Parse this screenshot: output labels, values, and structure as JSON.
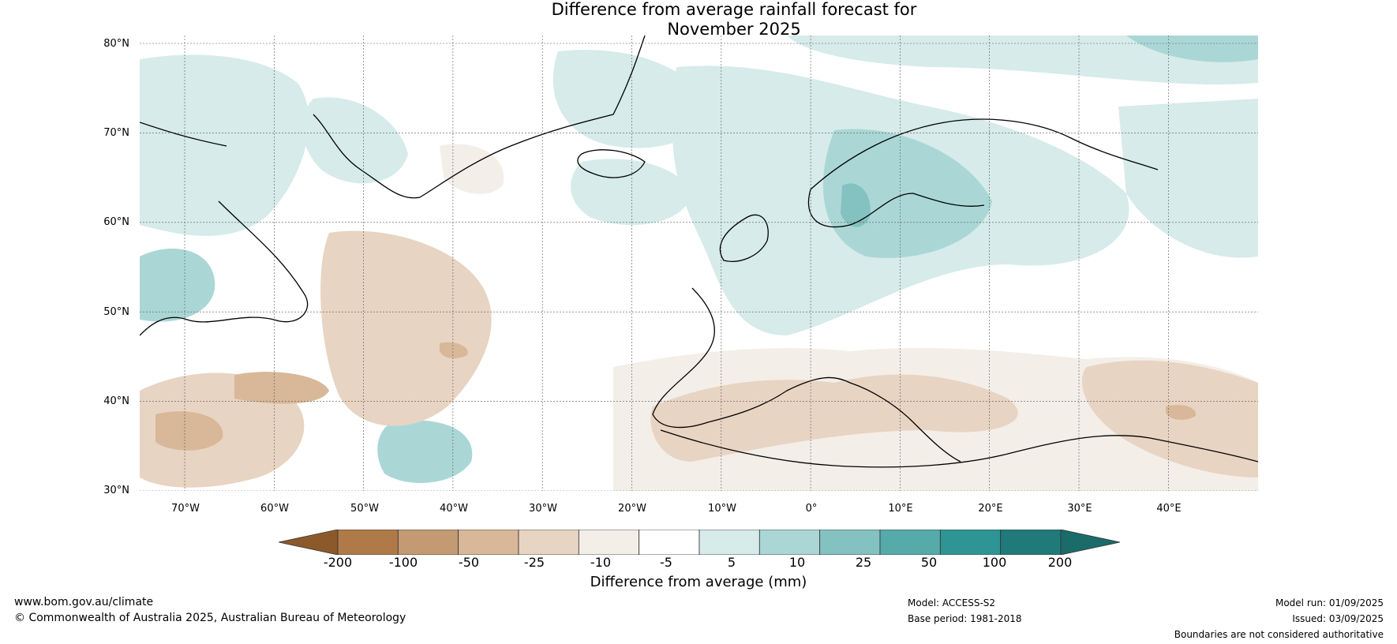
{
  "title_line1": "Difference from average rainfall forecast for",
  "title_line2": "November 2025",
  "lat_labels": [
    "80°N",
    "70°N",
    "60°N",
    "50°N",
    "40°N",
    "30°N"
  ],
  "lon_labels": [
    "70°W",
    "60°W",
    "50°W",
    "40°W",
    "30°W",
    "20°W",
    "10°W",
    "0°",
    "10°E",
    "20°E",
    "30°E",
    "40°E"
  ],
  "colorbar": {
    "ticks": [
      "-200",
      "-100",
      "-50",
      "-25",
      "-10",
      "-5",
      "5",
      "10",
      "25",
      "50",
      "100",
      "200"
    ],
    "colors": [
      "#8c5a2a",
      "#b07a48",
      "#c49a72",
      "#d8b898",
      "#e8d4c2",
      "#f3eee8",
      "#ffffff",
      "#d6ebea",
      "#aad7d6",
      "#84c2c1",
      "#56aaa9",
      "#2f9594",
      "#207a79",
      "#1a6b6a"
    ],
    "label": "Difference from average (mm)"
  },
  "footer": {
    "website": "www.bom.gov.au/climate",
    "copyright": "© Commonwealth of Australia 2025, Australian Bureau of Meteorology",
    "model": "Model: ACCESS-S2",
    "base_period": "Base period: 1981-2018",
    "model_run": "Model run: 01/09/2025",
    "issued": "Issued: 03/09/2025",
    "disclaimer": "Boundaries are not considered authoritative"
  }
}
